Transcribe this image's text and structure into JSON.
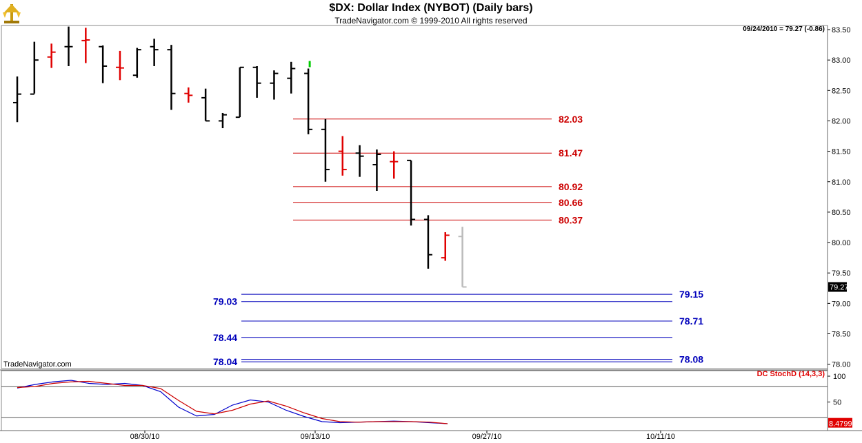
{
  "header": {
    "title": "$DX:  Dollar Index (NYBOT)  (Daily bars)",
    "subtitle": "TradeNavigator.com © 1999-2010 All rights reserved",
    "quote": "09/24/2010 = 79.27 (-0.86)",
    "watermark": "TradeNavigator.com"
  },
  "colors": {
    "up_bar": "#000000",
    "down_bar": "#e00000",
    "last_bar": "#bbbbbb",
    "resistance": "#cc0000",
    "support": "#0000bb",
    "stoch_k": "#0000cc",
    "stoch_d": "#cc0000"
  },
  "chart_data": [
    {
      "type": "ohlc",
      "title": "$DX:  Dollar Index (NYBOT)  (Daily bars)",
      "ylim": [
        77.95,
        83.55
      ],
      "y_ticks": [
        "83.50",
        "83.00",
        "82.50",
        "82.00",
        "81.50",
        "81.00",
        "80.50",
        "80.00",
        "79.50",
        "79.00",
        "78.50",
        "78.00"
      ],
      "x_ticks": [
        "08/30/10",
        "09/13/10",
        "09/27/10",
        "10/11/10"
      ],
      "last_price": "79.27",
      "bars": [
        {
          "o": 82.3,
          "h": 82.73,
          "l": 81.98,
          "c": 82.44,
          "color": "black"
        },
        {
          "o": 82.44,
          "h": 83.3,
          "l": 82.45,
          "c": 83.0,
          "color": "black"
        },
        {
          "o": 83.05,
          "h": 83.27,
          "l": 82.87,
          "c": 83.13,
          "color": "red"
        },
        {
          "o": 83.22,
          "h": 83.55,
          "l": 82.9,
          "c": 83.22,
          "color": "black"
        },
        {
          "o": 83.32,
          "h": 83.53,
          "l": 82.95,
          "c": 83.33,
          "color": "red"
        },
        {
          "o": 83.22,
          "h": 83.24,
          "l": 82.62,
          "c": 82.9,
          "color": "black"
        },
        {
          "o": 82.88,
          "h": 83.15,
          "l": 82.67,
          "c": 82.87,
          "color": "red"
        },
        {
          "o": 82.75,
          "h": 83.2,
          "l": 82.71,
          "c": 83.17,
          "color": "black"
        },
        {
          "o": 83.22,
          "h": 83.35,
          "l": 82.9,
          "c": 83.17,
          "color": "black"
        },
        {
          "o": 83.17,
          "h": 83.25,
          "l": 82.18,
          "c": 82.45,
          "color": "black"
        },
        {
          "o": 82.45,
          "h": 82.55,
          "l": 82.3,
          "c": 82.42,
          "color": "red"
        },
        {
          "o": 82.38,
          "h": 82.53,
          "l": 82.0,
          "c": 82.0,
          "color": "black"
        },
        {
          "o": 82.0,
          "h": 82.13,
          "l": 81.88,
          "c": 82.1,
          "color": "black"
        },
        {
          "o": 82.06,
          "h": 82.88,
          "l": 82.06,
          "c": 82.88,
          "color": "black"
        },
        {
          "o": 82.88,
          "h": 82.9,
          "l": 82.38,
          "c": 82.62,
          "color": "black"
        },
        {
          "o": 82.62,
          "h": 82.83,
          "l": 82.35,
          "c": 82.78,
          "color": "black"
        },
        {
          "o": 82.7,
          "h": 82.97,
          "l": 82.45,
          "c": 82.86,
          "color": "black"
        },
        {
          "o": 82.78,
          "h": 82.86,
          "l": 81.78,
          "c": 81.86,
          "color": "black"
        },
        {
          "o": 81.86,
          "h": 82.03,
          "l": 81.0,
          "c": 81.2,
          "color": "black"
        },
        {
          "o": 81.5,
          "h": 81.75,
          "l": 81.1,
          "c": 81.2,
          "color": "red"
        },
        {
          "o": 81.47,
          "h": 81.6,
          "l": 81.08,
          "c": 81.42,
          "color": "black"
        },
        {
          "o": 81.28,
          "h": 81.53,
          "l": 80.85,
          "c": 81.45,
          "color": "black"
        },
        {
          "o": 81.33,
          "h": 81.5,
          "l": 81.05,
          "c": 81.33,
          "color": "red"
        },
        {
          "o": 81.35,
          "h": 81.35,
          "l": 80.28,
          "c": 80.38,
          "color": "black"
        },
        {
          "o": 80.38,
          "h": 80.45,
          "l": 79.57,
          "c": 79.8,
          "color": "black"
        },
        {
          "o": 79.75,
          "h": 80.17,
          "l": 79.7,
          "c": 80.12,
          "color": "red"
        },
        {
          "o": 80.1,
          "h": 80.26,
          "l": 79.27,
          "c": 79.27,
          "color": "grey"
        }
      ],
      "levels": [
        {
          "value": 82.03,
          "label": "82.03",
          "color": "red",
          "label_side": "right"
        },
        {
          "value": 81.47,
          "label": "81.47",
          "color": "red",
          "label_side": "right"
        },
        {
          "value": 80.92,
          "label": "80.92",
          "color": "red",
          "label_side": "right"
        },
        {
          "value": 80.66,
          "label": "80.66",
          "color": "red",
          "label_side": "right"
        },
        {
          "value": 80.37,
          "label": "80.37",
          "color": "red",
          "label_side": "right"
        },
        {
          "value": 79.15,
          "label": "79.15",
          "color": "blue",
          "label_side": "right"
        },
        {
          "value": 79.03,
          "label": "79.03",
          "color": "blue",
          "label_side": "left"
        },
        {
          "value": 78.71,
          "label": "78.71",
          "color": "blue",
          "label_side": "right"
        },
        {
          "value": 78.44,
          "label": "78.44",
          "color": "blue",
          "label_side": "left"
        },
        {
          "value": 78.08,
          "label": "78.08",
          "color": "blue",
          "label_side": "right"
        },
        {
          "value": 78.04,
          "label": "78.04",
          "color": "blue",
          "label_side": "left"
        }
      ]
    },
    {
      "type": "line",
      "title": "DC StochD (14,3,3)",
      "ylim": [
        0,
        100
      ],
      "y_ticks": [
        "100",
        "50"
      ],
      "reference_lines": [
        80,
        20
      ],
      "last_value": "8.4799",
      "series": [
        {
          "name": "k",
          "values": [
            77,
            84,
            89,
            92,
            86,
            84,
            86,
            82,
            70,
            40,
            23,
            26,
            44,
            54,
            50,
            34,
            22,
            12,
            10,
            11,
            12,
            13,
            12,
            10,
            8
          ]
        },
        {
          "name": "d",
          "values": [
            78,
            80,
            86,
            89,
            90,
            86,
            82,
            82,
            76,
            53,
            32,
            27,
            34,
            46,
            52,
            42,
            29,
            18,
            12,
            11,
            12,
            12,
            12,
            11,
            8
          ]
        }
      ]
    }
  ]
}
